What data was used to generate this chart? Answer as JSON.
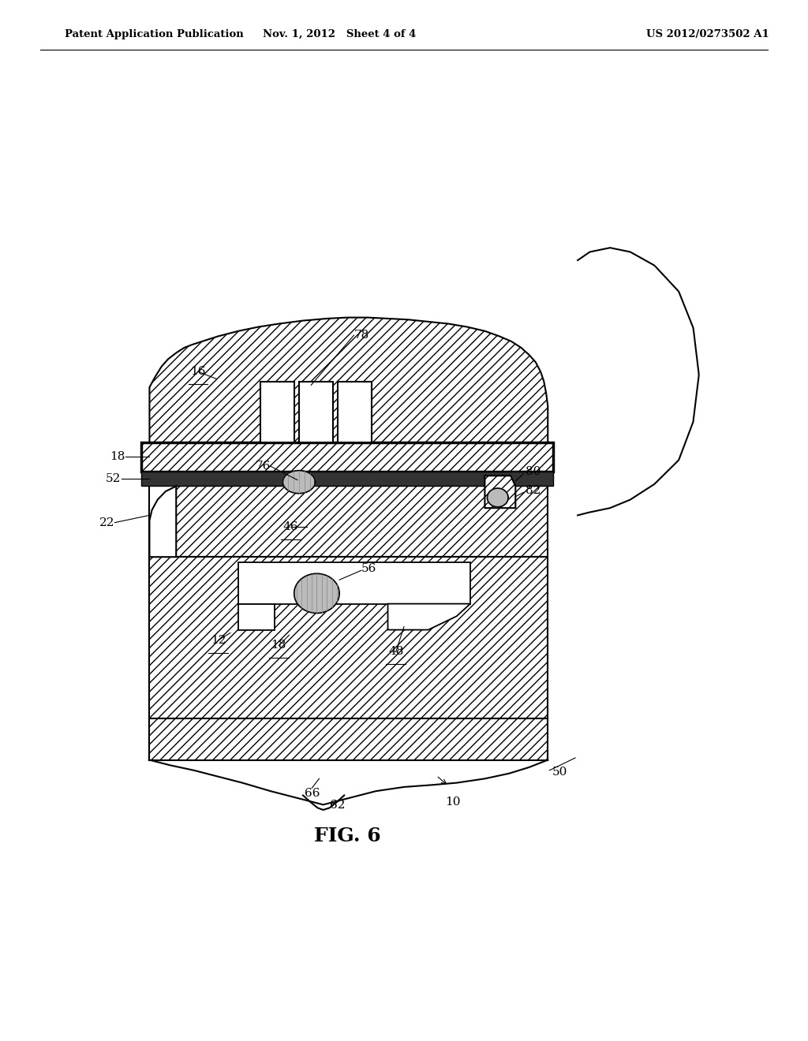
{
  "title": "FIG. 6",
  "header_left": "Patent Application Publication",
  "header_center": "Nov. 1, 2012   Sheet 4 of 4",
  "header_right": "US 2012/0273502 A1",
  "bg_color": "#ffffff",
  "line_color": "#000000",
  "lw_main": 1.5,
  "lw_thick": 2.5,
  "label_fs": 11,
  "fig_caption": "FIG. 6",
  "fig_caption_fs": 18
}
